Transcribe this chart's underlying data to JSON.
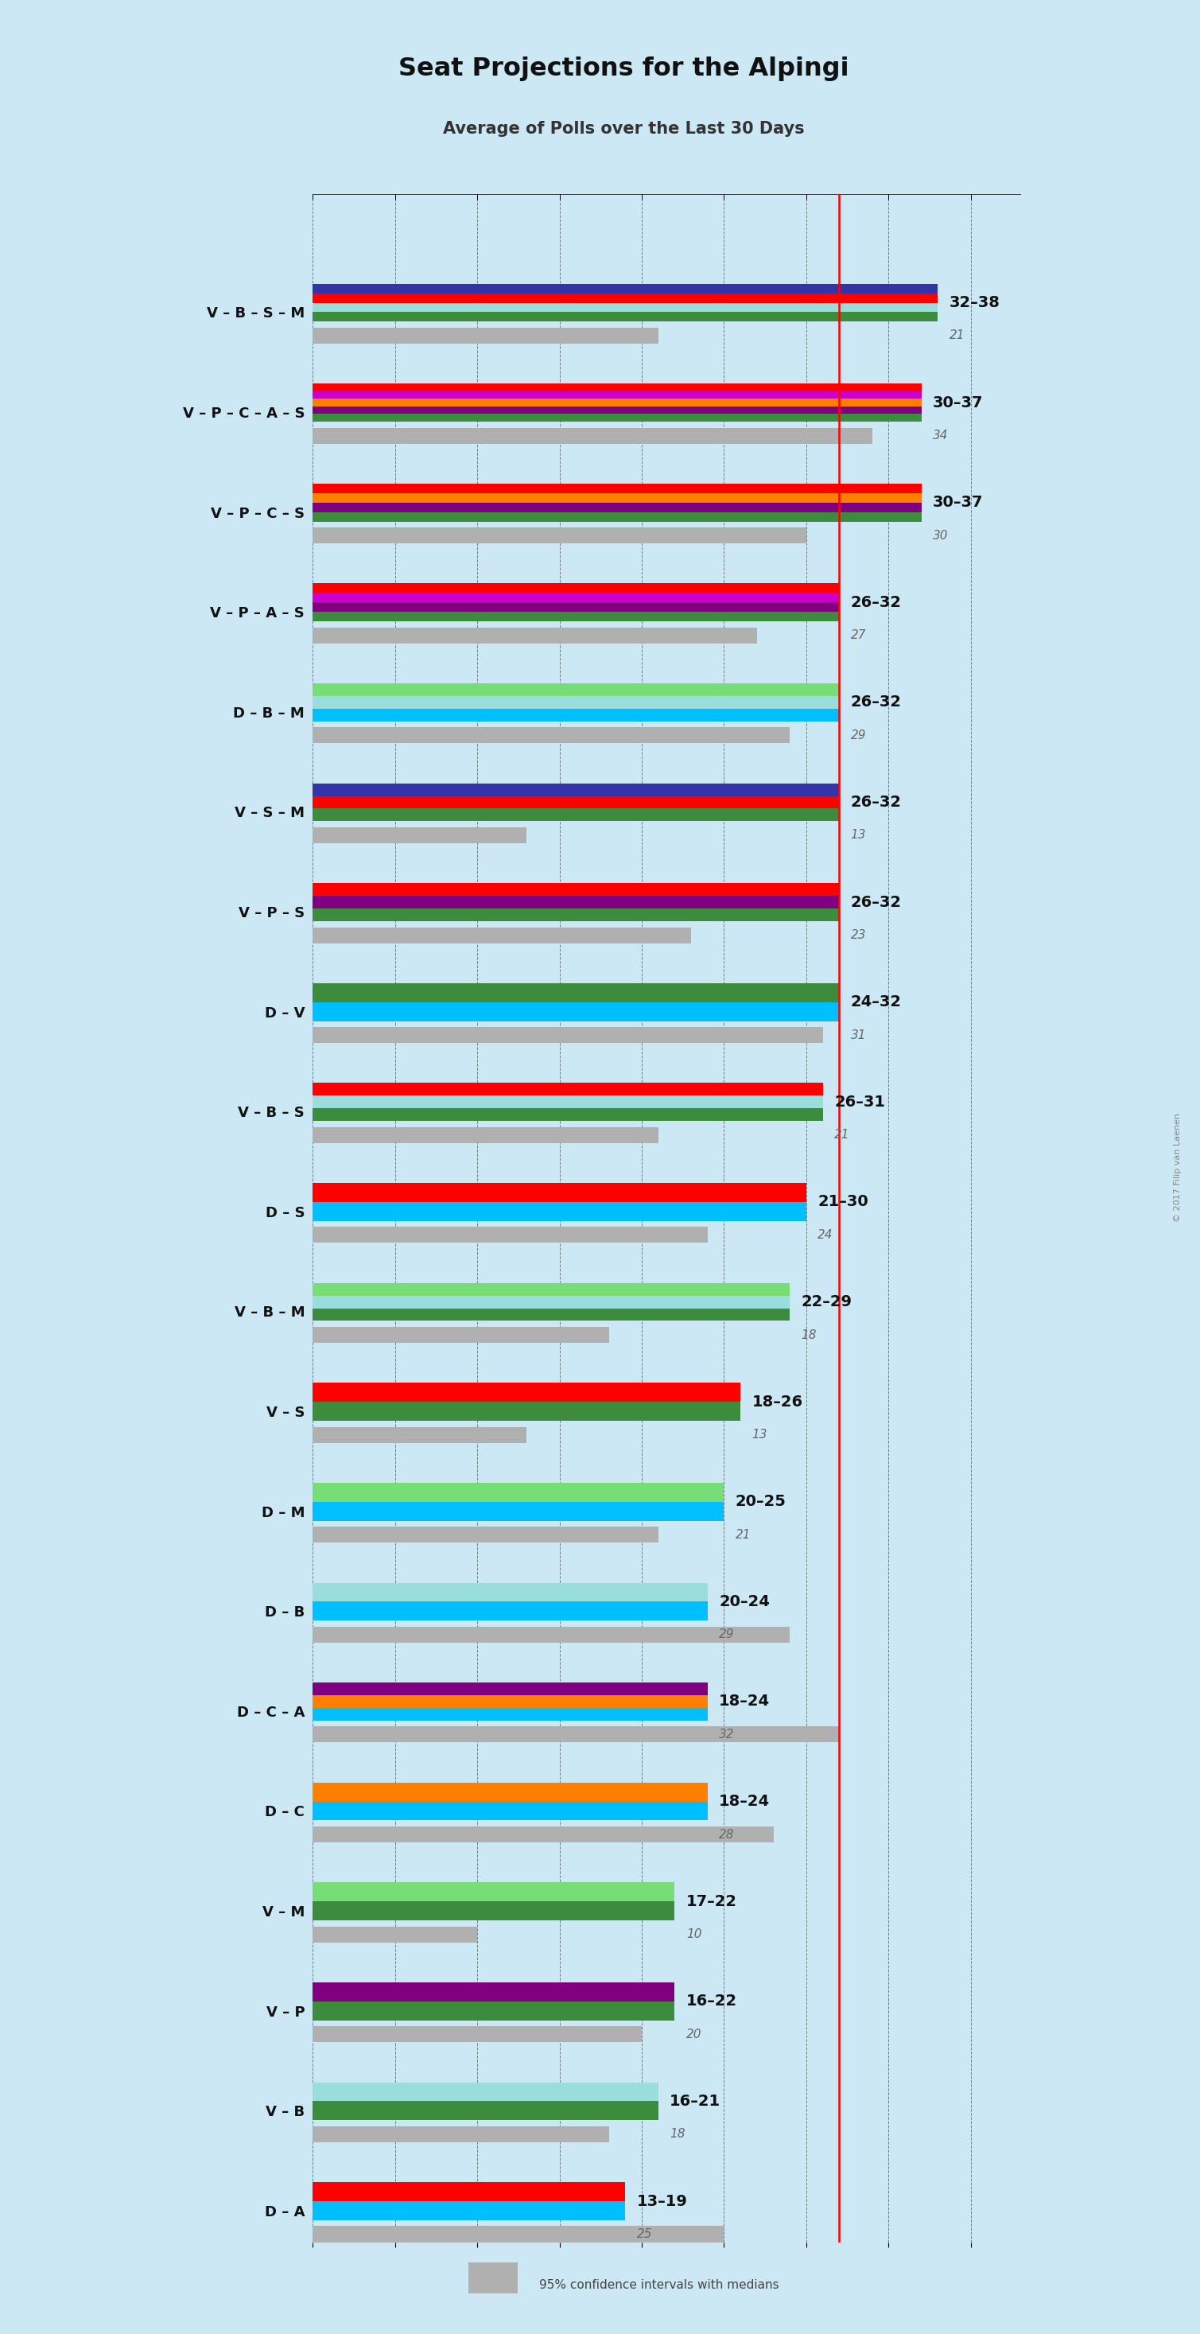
{
  "title": "Seat Projections for the Alpingi",
  "subtitle": "Average of Polls over the Last 30 Days",
  "copyright": "© 2017 Filip van Laenen",
  "background_color": "#cce8f4",
  "majority_line": 32,
  "x_max": 43,
  "footer": "95% confidence intervals with medians",
  "coalitions": [
    {
      "name": "V – B – S – M",
      "range_low": 32,
      "range_high": 38,
      "median": 21,
      "parties": [
        {
          "name": "V",
          "color": "#3d8b3d"
        },
        {
          "name": "B",
          "color": "#99DDDD"
        },
        {
          "name": "S",
          "color": "#FF0000"
        },
        {
          "name": "M",
          "color": "#3333AA"
        }
      ],
      "ci_colors": [
        "#3d8b3d",
        "#99DDDD",
        "#FF0000",
        "#3333AA"
      ]
    },
    {
      "name": "V – P – C – A – S",
      "range_low": 30,
      "range_high": 37,
      "median": 34,
      "parties": [
        {
          "name": "V",
          "color": "#3d8b3d"
        },
        {
          "name": "P",
          "color": "#800080"
        },
        {
          "name": "C",
          "color": "#FF7F00"
        },
        {
          "name": "A",
          "color": "#CC00CC"
        },
        {
          "name": "S",
          "color": "#FF0000"
        }
      ],
      "ci_colors": [
        "#3d8b3d",
        "#800080",
        "#FF7F00",
        "#CC00CC",
        "#FF0000"
      ]
    },
    {
      "name": "V – P – C – S",
      "range_low": 30,
      "range_high": 37,
      "median": 30,
      "parties": [
        {
          "name": "V",
          "color": "#3d8b3d"
        },
        {
          "name": "P",
          "color": "#800080"
        },
        {
          "name": "C",
          "color": "#FF7F00"
        },
        {
          "name": "S",
          "color": "#FF0000"
        }
      ],
      "ci_colors": [
        "#3d8b3d",
        "#800080",
        "#FF7F00",
        "#FF0000"
      ]
    },
    {
      "name": "V – P – A – S",
      "range_low": 26,
      "range_high": 32,
      "median": 27,
      "parties": [
        {
          "name": "V",
          "color": "#3d8b3d"
        },
        {
          "name": "P",
          "color": "#800080"
        },
        {
          "name": "A",
          "color": "#CC00CC"
        },
        {
          "name": "S",
          "color": "#FF0000"
        }
      ],
      "ci_colors": [
        "#3d8b3d",
        "#800080",
        "#CC00CC",
        "#FF0000"
      ]
    },
    {
      "name": "D – B – M",
      "range_low": 26,
      "range_high": 32,
      "median": 29,
      "parties": [
        {
          "name": "D",
          "color": "#00BFFF"
        },
        {
          "name": "B",
          "color": "#99DDDD"
        },
        {
          "name": "M",
          "color": "#77DD77"
        }
      ],
      "ci_colors": [
        "#00BFFF",
        "#99DDDD",
        "#77DD77"
      ]
    },
    {
      "name": "V – S – M",
      "range_low": 26,
      "range_high": 32,
      "median": 13,
      "parties": [
        {
          "name": "V",
          "color": "#3d8b3d"
        },
        {
          "name": "S",
          "color": "#FF0000"
        },
        {
          "name": "M",
          "color": "#3333AA"
        }
      ],
      "ci_colors": [
        "#3d8b3d",
        "#FF0000",
        "#3333AA"
      ]
    },
    {
      "name": "V – P – S",
      "range_low": 26,
      "range_high": 32,
      "median": 23,
      "parties": [
        {
          "name": "V",
          "color": "#3d8b3d"
        },
        {
          "name": "P",
          "color": "#800080"
        },
        {
          "name": "S",
          "color": "#FF0000"
        }
      ],
      "ci_colors": [
        "#3d8b3d",
        "#800080",
        "#FF0000"
      ]
    },
    {
      "name": "D – V",
      "range_low": 24,
      "range_high": 32,
      "median": 31,
      "parties": [
        {
          "name": "D",
          "color": "#00BFFF"
        },
        {
          "name": "V",
          "color": "#3d8b3d"
        }
      ],
      "ci_colors": [
        "#00BFFF",
        "#3d8b3d"
      ]
    },
    {
      "name": "V – B – S",
      "range_low": 26,
      "range_high": 31,
      "median": 21,
      "parties": [
        {
          "name": "V",
          "color": "#3d8b3d"
        },
        {
          "name": "B",
          "color": "#99DDDD"
        },
        {
          "name": "S",
          "color": "#FF0000"
        }
      ],
      "ci_colors": [
        "#3d8b3d",
        "#99DDDD",
        "#FF0000"
      ]
    },
    {
      "name": "D – S",
      "range_low": 21,
      "range_high": 30,
      "median": 24,
      "parties": [
        {
          "name": "D",
          "color": "#00BFFF"
        },
        {
          "name": "S",
          "color": "#FF0000"
        }
      ],
      "ci_colors": [
        "#00BFFF",
        "#FF0000"
      ]
    },
    {
      "name": "V – B – M",
      "range_low": 22,
      "range_high": 29,
      "median": 18,
      "parties": [
        {
          "name": "V",
          "color": "#3d8b3d"
        },
        {
          "name": "B",
          "color": "#99DDDD"
        },
        {
          "name": "M",
          "color": "#77DD77"
        }
      ],
      "ci_colors": [
        "#3d8b3d",
        "#99DDDD",
        "#77DD77"
      ]
    },
    {
      "name": "V – S",
      "range_low": 18,
      "range_high": 26,
      "median": 13,
      "parties": [
        {
          "name": "V",
          "color": "#3d8b3d"
        },
        {
          "name": "S",
          "color": "#FF0000"
        }
      ],
      "ci_colors": [
        "#3d8b3d",
        "#FF0000"
      ]
    },
    {
      "name": "D – M",
      "range_low": 20,
      "range_high": 25,
      "median": 21,
      "parties": [
        {
          "name": "D",
          "color": "#00BFFF"
        },
        {
          "name": "M",
          "color": "#77DD77"
        }
      ],
      "ci_colors": [
        "#00BFFF",
        "#77DD77"
      ]
    },
    {
      "name": "D – B",
      "range_low": 20,
      "range_high": 24,
      "median": 29,
      "parties": [
        {
          "name": "D",
          "color": "#00BFFF"
        },
        {
          "name": "B",
          "color": "#99DDDD"
        }
      ],
      "ci_colors": [
        "#00BFFF",
        "#99DDDD"
      ]
    },
    {
      "name": "D – C – A",
      "range_low": 18,
      "range_high": 24,
      "median": 32,
      "parties": [
        {
          "name": "D",
          "color": "#00BFFF"
        },
        {
          "name": "C",
          "color": "#FF7F00"
        },
        {
          "name": "A",
          "color": "#800080"
        }
      ],
      "ci_colors": [
        "#00BFFF",
        "#FF7F00",
        "#800080"
      ]
    },
    {
      "name": "D – C",
      "range_low": 18,
      "range_high": 24,
      "median": 28,
      "parties": [
        {
          "name": "D",
          "color": "#00BFFF"
        },
        {
          "name": "C",
          "color": "#FF7F00"
        }
      ],
      "ci_colors": [
        "#00BFFF",
        "#FF7F00"
      ]
    },
    {
      "name": "V – M",
      "range_low": 17,
      "range_high": 22,
      "median": 10,
      "parties": [
        {
          "name": "V",
          "color": "#3d8b3d"
        },
        {
          "name": "M",
          "color": "#77DD77"
        }
      ],
      "ci_colors": [
        "#3d8b3d",
        "#77DD77"
      ]
    },
    {
      "name": "V – P",
      "range_low": 16,
      "range_high": 22,
      "median": 20,
      "parties": [
        {
          "name": "V",
          "color": "#3d8b3d"
        },
        {
          "name": "P",
          "color": "#800080"
        }
      ],
      "ci_colors": [
        "#3d8b3d",
        "#800080"
      ]
    },
    {
      "name": "V – B",
      "range_low": 16,
      "range_high": 21,
      "median": 18,
      "parties": [
        {
          "name": "V",
          "color": "#3d8b3d"
        },
        {
          "name": "B",
          "color": "#99DDDD"
        }
      ],
      "ci_colors": [
        "#3d8b3d",
        "#99DDDD"
      ]
    },
    {
      "name": "D – A",
      "range_low": 13,
      "range_high": 19,
      "median": 25,
      "parties": [
        {
          "name": "D",
          "color": "#00BFFF"
        },
        {
          "name": "A",
          "color": "#FF0000"
        }
      ],
      "ci_colors": [
        "#00BFFF",
        "#FF0000"
      ]
    }
  ]
}
